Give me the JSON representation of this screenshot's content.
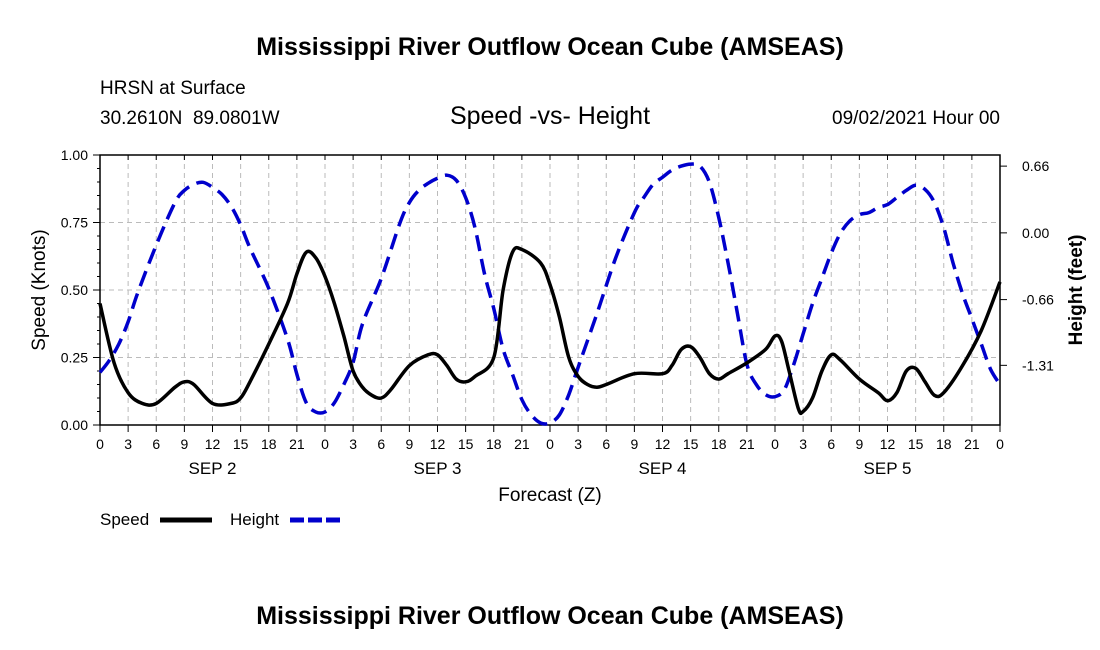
{
  "header": {
    "main_title": "Mississippi River Outflow Ocean Cube (AMSEAS)",
    "location_label": "HRSN at Surface",
    "coordinates": "30.2610N  89.0801W",
    "plot_title": "Speed -vs- Height",
    "date_label": "09/02/2021 Hour 00"
  },
  "footer": {
    "bottom_title": "Mississippi River Outflow Ocean Cube (AMSEAS)"
  },
  "chart_data": {
    "type": "line",
    "title": "Speed -vs- Height",
    "xlabel": "Forecast (Z)",
    "ylabel_left": "Speed (Knots)",
    "ylabel_right": "Height (feet)",
    "x_range_hours": [
      0,
      96
    ],
    "left_ylim": [
      0,
      1
    ],
    "right_ylim": [
      -1.9,
      0.77
    ],
    "x_ticks": [
      {
        "h": 0,
        "label": "0"
      },
      {
        "h": 3,
        "label": "3"
      },
      {
        "h": 6,
        "label": "6"
      },
      {
        "h": 9,
        "label": "9"
      },
      {
        "h": 12,
        "label": "12"
      },
      {
        "h": 15,
        "label": "15"
      },
      {
        "h": 18,
        "label": "18"
      },
      {
        "h": 21,
        "label": "21"
      },
      {
        "h": 24,
        "label": "0"
      },
      {
        "h": 27,
        "label": "3"
      },
      {
        "h": 30,
        "label": "6"
      },
      {
        "h": 33,
        "label": "9"
      },
      {
        "h": 36,
        "label": "12"
      },
      {
        "h": 39,
        "label": "15"
      },
      {
        "h": 42,
        "label": "18"
      },
      {
        "h": 45,
        "label": "21"
      },
      {
        "h": 48,
        "label": "0"
      },
      {
        "h": 51,
        "label": "3"
      },
      {
        "h": 54,
        "label": "6"
      },
      {
        "h": 57,
        "label": "9"
      },
      {
        "h": 60,
        "label": "12"
      },
      {
        "h": 63,
        "label": "15"
      },
      {
        "h": 66,
        "label": "18"
      },
      {
        "h": 69,
        "label": "21"
      },
      {
        "h": 72,
        "label": "0"
      },
      {
        "h": 75,
        "label": "3"
      },
      {
        "h": 78,
        "label": "6"
      },
      {
        "h": 81,
        "label": "9"
      },
      {
        "h": 84,
        "label": "12"
      },
      {
        "h": 87,
        "label": "15"
      },
      {
        "h": 90,
        "label": "18"
      },
      {
        "h": 93,
        "label": "21"
      },
      {
        "h": 96,
        "label": "0"
      }
    ],
    "day_labels": [
      {
        "h": 12,
        "label": "SEP 2"
      },
      {
        "h": 36,
        "label": "SEP 3"
      },
      {
        "h": 60,
        "label": "SEP 4"
      },
      {
        "h": 84,
        "label": "SEP 5"
      }
    ],
    "left_ticks": [
      {
        "v": 0.0,
        "label": "0.00"
      },
      {
        "v": 0.25,
        "label": "0.25"
      },
      {
        "v": 0.5,
        "label": "0.50"
      },
      {
        "v": 0.75,
        "label": "0.75"
      },
      {
        "v": 1.0,
        "label": "1.00"
      }
    ],
    "right_ticks": [
      {
        "v": 0.66,
        "label": "0.66"
      },
      {
        "v": 0.0,
        "label": "0.00"
      },
      {
        "v": -0.66,
        "label": "-0.66"
      },
      {
        "v": -1.31,
        "label": "-1.31"
      }
    ],
    "legend": [
      {
        "name": "Speed",
        "color": "#000000",
        "dash": false
      },
      {
        "name": "Height",
        "color": "#0000cc",
        "dash": true
      }
    ],
    "series": [
      {
        "name": "Speed",
        "axis": "left",
        "color": "#000000",
        "points": [
          [
            0,
            0.45
          ],
          [
            1.5,
            0.23
          ],
          [
            3,
            0.12
          ],
          [
            4.5,
            0.08
          ],
          [
            6,
            0.08
          ],
          [
            8,
            0.14
          ],
          [
            9,
            0.16
          ],
          [
            10,
            0.15
          ],
          [
            12,
            0.08
          ],
          [
            14,
            0.08
          ],
          [
            15,
            0.1
          ],
          [
            16,
            0.16
          ],
          [
            18,
            0.3
          ],
          [
            20,
            0.45
          ],
          [
            21,
            0.56
          ],
          [
            22,
            0.64
          ],
          [
            23,
            0.62
          ],
          [
            24,
            0.55
          ],
          [
            25,
            0.45
          ],
          [
            26,
            0.33
          ],
          [
            27,
            0.2
          ],
          [
            28,
            0.14
          ],
          [
            29,
            0.11
          ],
          [
            30,
            0.1
          ],
          [
            31,
            0.13
          ],
          [
            33,
            0.22
          ],
          [
            35,
            0.26
          ],
          [
            36,
            0.26
          ],
          [
            37,
            0.22
          ],
          [
            38,
            0.17
          ],
          [
            39,
            0.16
          ],
          [
            40,
            0.18
          ],
          [
            42,
            0.25
          ],
          [
            43,
            0.5
          ],
          [
            44,
            0.64
          ],
          [
            45,
            0.65
          ],
          [
            47,
            0.6
          ],
          [
            48,
            0.52
          ],
          [
            49,
            0.4
          ],
          [
            50,
            0.25
          ],
          [
            51,
            0.18
          ],
          [
            52,
            0.15
          ],
          [
            53,
            0.14
          ],
          [
            54,
            0.15
          ],
          [
            57,
            0.19
          ],
          [
            60,
            0.19
          ],
          [
            61,
            0.22
          ],
          [
            62,
            0.28
          ],
          [
            63,
            0.29
          ],
          [
            64,
            0.25
          ],
          [
            65,
            0.19
          ],
          [
            66,
            0.17
          ],
          [
            67,
            0.19
          ],
          [
            69,
            0.23
          ],
          [
            71,
            0.28
          ],
          [
            72,
            0.33
          ],
          [
            72.7,
            0.31
          ],
          [
            73.5,
            0.2
          ],
          [
            74.5,
            0.06
          ],
          [
            75,
            0.05
          ],
          [
            76,
            0.1
          ],
          [
            77,
            0.2
          ],
          [
            78,
            0.26
          ],
          [
            79,
            0.24
          ],
          [
            81,
            0.17
          ],
          [
            83,
            0.12
          ],
          [
            84,
            0.09
          ],
          [
            85,
            0.12
          ],
          [
            86,
            0.2
          ],
          [
            87,
            0.21
          ],
          [
            88,
            0.16
          ],
          [
            89,
            0.11
          ],
          [
            90,
            0.12
          ],
          [
            92,
            0.22
          ],
          [
            94,
            0.35
          ],
          [
            96,
            0.53
          ]
        ]
      },
      {
        "name": "Height",
        "axis": "right",
        "color": "#0000cc",
        "points": [
          [
            0,
            -1.38
          ],
          [
            1,
            -1.26
          ],
          [
            2,
            -1.1
          ],
          [
            3,
            -0.88
          ],
          [
            4,
            -0.6
          ],
          [
            6,
            -0.12
          ],
          [
            8,
            0.3
          ],
          [
            9,
            0.42
          ],
          [
            10,
            0.48
          ],
          [
            11,
            0.5
          ],
          [
            12,
            0.45
          ],
          [
            13,
            0.38
          ],
          [
            14,
            0.26
          ],
          [
            15,
            0.08
          ],
          [
            16,
            -0.15
          ],
          [
            18,
            -0.55
          ],
          [
            20,
            -1.05
          ],
          [
            21,
            -1.4
          ],
          [
            22,
            -1.68
          ],
          [
            23,
            -1.77
          ],
          [
            24,
            -1.77
          ],
          [
            25,
            -1.68
          ],
          [
            26,
            -1.5
          ],
          [
            27,
            -1.28
          ],
          [
            28,
            -0.9
          ],
          [
            30,
            -0.45
          ],
          [
            32,
            0.1
          ],
          [
            33,
            0.3
          ],
          [
            34,
            0.42
          ],
          [
            35,
            0.49
          ],
          [
            36,
            0.54
          ],
          [
            37,
            0.57
          ],
          [
            38,
            0.52
          ],
          [
            39,
            0.35
          ],
          [
            40,
            0.05
          ],
          [
            41,
            -0.4
          ],
          [
            42,
            -0.75
          ],
          [
            43,
            -1.15
          ],
          [
            44,
            -1.4
          ],
          [
            45,
            -1.65
          ],
          [
            46,
            -1.8
          ],
          [
            47,
            -1.88
          ],
          [
            48,
            -1.88
          ],
          [
            49,
            -1.8
          ],
          [
            50,
            -1.6
          ],
          [
            51,
            -1.33
          ],
          [
            53,
            -0.8
          ],
          [
            55,
            -0.25
          ],
          [
            57,
            0.2
          ],
          [
            58,
            0.35
          ],
          [
            59,
            0.48
          ],
          [
            60,
            0.55
          ],
          [
            61,
            0.62
          ],
          [
            62,
            0.66
          ],
          [
            63,
            0.68
          ],
          [
            64,
            0.66
          ],
          [
            65,
            0.5
          ],
          [
            66,
            0.15
          ],
          [
            67,
            -0.3
          ],
          [
            68,
            -0.8
          ],
          [
            69,
            -1.3
          ],
          [
            70,
            -1.5
          ],
          [
            71,
            -1.6
          ],
          [
            72,
            -1.62
          ],
          [
            73,
            -1.55
          ],
          [
            74,
            -1.3
          ],
          [
            75,
            -1.0
          ],
          [
            76,
            -0.7
          ],
          [
            77,
            -0.45
          ],
          [
            78,
            -0.2
          ],
          [
            79,
            0.0
          ],
          [
            80,
            0.12
          ],
          [
            81,
            0.18
          ],
          [
            82,
            0.2
          ],
          [
            83,
            0.25
          ],
          [
            84,
            0.28
          ],
          [
            85,
            0.35
          ],
          [
            86,
            0.42
          ],
          [
            87,
            0.47
          ],
          [
            88,
            0.43
          ],
          [
            89,
            0.3
          ],
          [
            90,
            0.05
          ],
          [
            91,
            -0.3
          ],
          [
            92,
            -0.6
          ],
          [
            93,
            -0.85
          ],
          [
            94,
            -1.1
          ],
          [
            95,
            -1.35
          ],
          [
            96,
            -1.5
          ]
        ]
      }
    ]
  }
}
